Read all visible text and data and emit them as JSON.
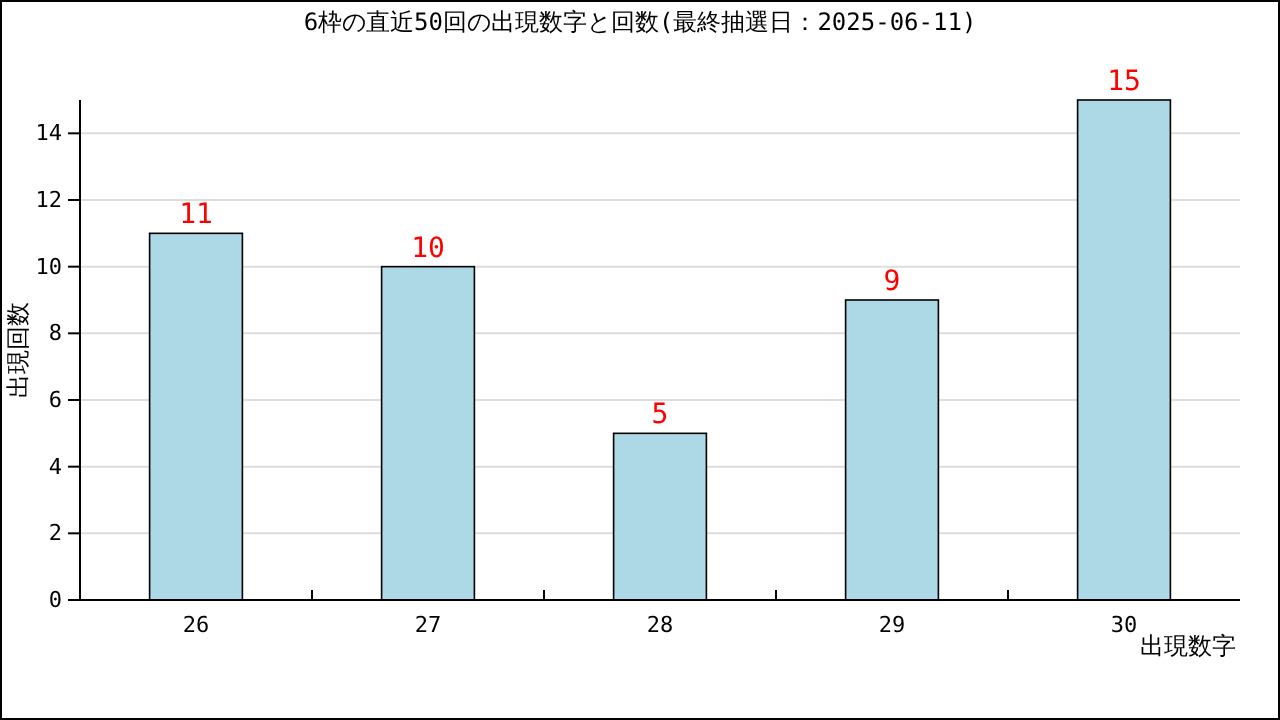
{
  "chart_data": {
    "type": "bar",
    "title": "6枠の直近50回の出現数字と回数(最終抽選日：2025-06-11)",
    "xlabel": "出現数字",
    "ylabel": "出現回数",
    "categories": [
      "26",
      "27",
      "28",
      "29",
      "30"
    ],
    "values": [
      11,
      10,
      5,
      9,
      15
    ],
    "color": "#add8e6",
    "ylim": [
      0,
      15
    ],
    "yticks": [
      0,
      2,
      4,
      6,
      8,
      10,
      12,
      14
    ],
    "grid": "y",
    "data_labels": true
  }
}
